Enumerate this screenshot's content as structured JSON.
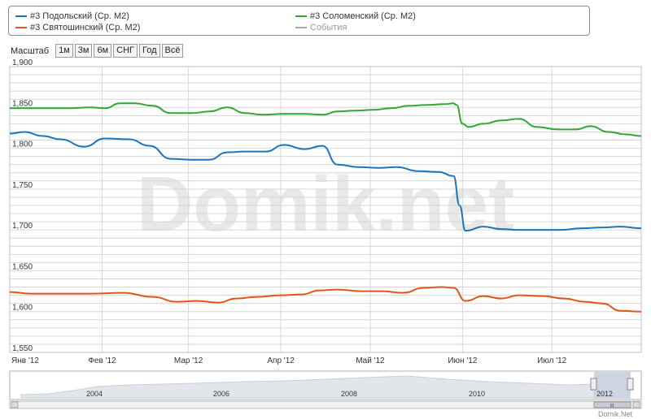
{
  "legend": {
    "items": [
      {
        "label": "#3 Подольский (Ср. М2)",
        "color": "#1a75bc"
      },
      {
        "label": "#3 Соломенский (Ср. М2)",
        "color": "#2fa82f"
      },
      {
        "label": "#3 Святошинский (Ср. М2)",
        "color": "#e0561a"
      },
      {
        "label": "События",
        "color": "#aaaaaa"
      }
    ]
  },
  "scale": {
    "label": "Масштаб",
    "buttons": [
      "1м",
      "3м",
      "6м",
      "СНГ",
      "Год",
      "Всё"
    ]
  },
  "watermark": "Domik.net",
  "credit": "Domik.Net",
  "navigator": {
    "years": [
      "2004",
      "2006",
      "2008",
      "2010",
      "2012"
    ],
    "scrollbar_glyph": "III"
  },
  "chart_data": {
    "type": "line",
    "x_start": "2012-01-01",
    "x_end": "2012-07-31",
    "x_ticks": [
      {
        "label": "Янв '12",
        "date": "2012-01-01"
      },
      {
        "label": "Фев '12",
        "date": "2012-02-01"
      },
      {
        "label": "Мар '12",
        "date": "2012-03-01"
      },
      {
        "label": "Апр '12",
        "date": "2012-04-01"
      },
      {
        "label": "Май '12",
        "date": "2012-05-01"
      },
      {
        "label": "Июн '12",
        "date": "2012-06-01"
      },
      {
        "label": "Июл '12",
        "date": "2012-07-01"
      }
    ],
    "y_ticks": [
      "1,550",
      "1,600",
      "1,650",
      "1,700",
      "1,750",
      "1,800",
      "1,850",
      "1,900"
    ],
    "ylim": [
      1550,
      1900
    ],
    "grid": true,
    "series": [
      {
        "name": "#3 Соломенский (Ср. М2)",
        "color": "#2fa82f",
        "points": [
          [
            "2012-01-01",
            1849
          ],
          [
            "2012-01-07",
            1849
          ],
          [
            "2012-01-14",
            1849
          ],
          [
            "2012-01-21",
            1849
          ],
          [
            "2012-01-28",
            1850
          ],
          [
            "2012-02-02",
            1849
          ],
          [
            "2012-02-07",
            1855
          ],
          [
            "2012-02-12",
            1855
          ],
          [
            "2012-02-18",
            1852
          ],
          [
            "2012-02-24",
            1843
          ],
          [
            "2012-03-02",
            1843
          ],
          [
            "2012-03-08",
            1845
          ],
          [
            "2012-03-14",
            1850
          ],
          [
            "2012-03-20",
            1843
          ],
          [
            "2012-03-26",
            1841
          ],
          [
            "2012-04-02",
            1842
          ],
          [
            "2012-04-09",
            1842
          ],
          [
            "2012-04-15",
            1841
          ],
          [
            "2012-04-20",
            1845
          ],
          [
            "2012-04-26",
            1846
          ],
          [
            "2012-05-02",
            1847
          ],
          [
            "2012-05-08",
            1849
          ],
          [
            "2012-05-14",
            1852
          ],
          [
            "2012-05-20",
            1853
          ],
          [
            "2012-05-26",
            1854
          ],
          [
            "2012-05-29",
            1855
          ],
          [
            "2012-05-30",
            1853
          ],
          [
            "2012-06-01",
            1830
          ],
          [
            "2012-06-03",
            1826
          ],
          [
            "2012-06-08",
            1830
          ],
          [
            "2012-06-14",
            1834
          ],
          [
            "2012-06-20",
            1836
          ],
          [
            "2012-06-26",
            1826
          ],
          [
            "2012-07-03",
            1823
          ],
          [
            "2012-07-09",
            1823
          ],
          [
            "2012-07-14",
            1827
          ],
          [
            "2012-07-20",
            1820
          ],
          [
            "2012-07-26",
            1817
          ],
          [
            "2012-07-31",
            1815
          ]
        ]
      },
      {
        "name": "#3 Подольский (Ср. М2)",
        "color": "#1a75bc",
        "points": [
          [
            "2012-01-01",
            1818
          ],
          [
            "2012-01-06",
            1820
          ],
          [
            "2012-01-12",
            1815
          ],
          [
            "2012-01-18",
            1811
          ],
          [
            "2012-01-26",
            1802
          ],
          [
            "2012-02-02",
            1812
          ],
          [
            "2012-02-10",
            1811
          ],
          [
            "2012-02-17",
            1803
          ],
          [
            "2012-02-24",
            1787
          ],
          [
            "2012-03-02",
            1786
          ],
          [
            "2012-03-08",
            1786
          ],
          [
            "2012-03-14",
            1795
          ],
          [
            "2012-03-20",
            1796
          ],
          [
            "2012-03-27",
            1796
          ],
          [
            "2012-04-02",
            1804
          ],
          [
            "2012-04-09",
            1799
          ],
          [
            "2012-04-15",
            1803
          ],
          [
            "2012-04-20",
            1780
          ],
          [
            "2012-04-27",
            1777
          ],
          [
            "2012-05-04",
            1776
          ],
          [
            "2012-05-10",
            1777
          ],
          [
            "2012-05-17",
            1772
          ],
          [
            "2012-05-24",
            1771
          ],
          [
            "2012-05-29",
            1766
          ],
          [
            "2012-05-31",
            1730
          ],
          [
            "2012-06-02",
            1699
          ],
          [
            "2012-06-08",
            1704
          ],
          [
            "2012-06-14",
            1701
          ],
          [
            "2012-06-20",
            1700
          ],
          [
            "2012-06-26",
            1700
          ],
          [
            "2012-07-04",
            1700
          ],
          [
            "2012-07-11",
            1702
          ],
          [
            "2012-07-18",
            1703
          ],
          [
            "2012-07-24",
            1704
          ],
          [
            "2012-07-31",
            1702
          ]
        ]
      },
      {
        "name": "#3 Святошинский (Ср. М2)",
        "color": "#e0561a",
        "points": [
          [
            "2012-01-01",
            1624
          ],
          [
            "2012-01-08",
            1622
          ],
          [
            "2012-01-17",
            1622
          ],
          [
            "2012-01-28",
            1622
          ],
          [
            "2012-02-08",
            1623
          ],
          [
            "2012-02-18",
            1618
          ],
          [
            "2012-02-26",
            1612
          ],
          [
            "2012-03-04",
            1613
          ],
          [
            "2012-03-11",
            1611
          ],
          [
            "2012-03-17",
            1616
          ],
          [
            "2012-03-24",
            1618
          ],
          [
            "2012-04-01",
            1620
          ],
          [
            "2012-04-08",
            1621
          ],
          [
            "2012-04-14",
            1626
          ],
          [
            "2012-04-20",
            1627
          ],
          [
            "2012-04-28",
            1625
          ],
          [
            "2012-05-05",
            1625
          ],
          [
            "2012-05-12",
            1623
          ],
          [
            "2012-05-19",
            1629
          ],
          [
            "2012-05-25",
            1630
          ],
          [
            "2012-05-29",
            1629
          ],
          [
            "2012-06-02",
            1613
          ],
          [
            "2012-06-08",
            1619
          ],
          [
            "2012-06-14",
            1616
          ],
          [
            "2012-06-20",
            1620
          ],
          [
            "2012-06-28",
            1619
          ],
          [
            "2012-07-05",
            1616
          ],
          [
            "2012-07-12",
            1612
          ],
          [
            "2012-07-18",
            1610
          ],
          [
            "2012-07-24",
            1601
          ],
          [
            "2012-07-31",
            1600
          ]
        ]
      }
    ]
  },
  "colors": {
    "grid": "#d6d6d6",
    "axis_text": "#333333",
    "watermark": "#e8e8e8",
    "navigator_fill": "#e2e6eb",
    "navigator_selection": "#b7c3d4"
  }
}
